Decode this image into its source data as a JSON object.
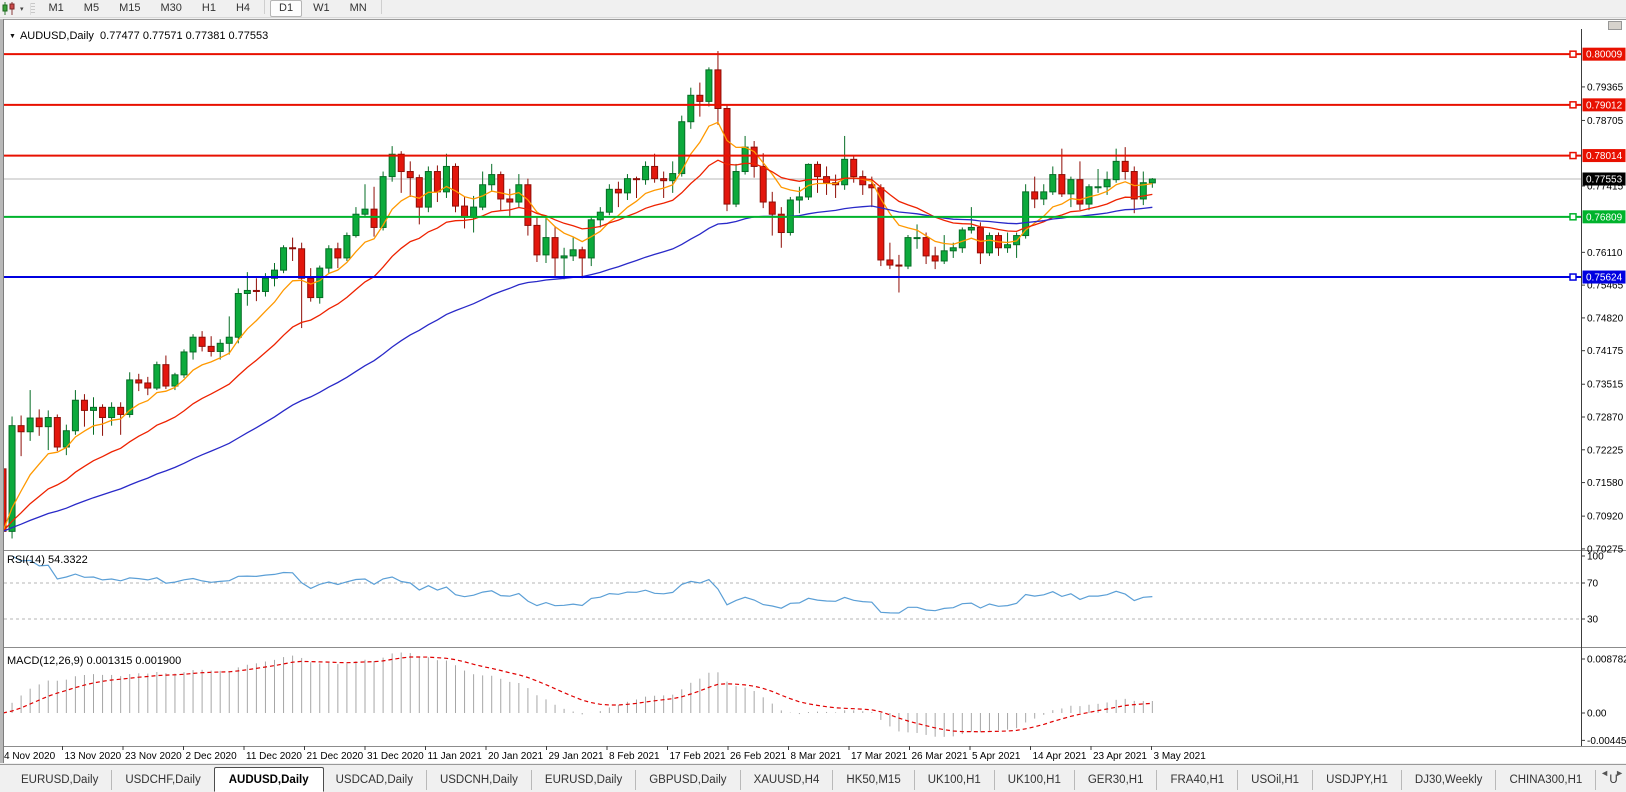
{
  "toolbar": {
    "chart_type_icon": "candlestick-chart-icon",
    "timeframes": [
      "M1",
      "M5",
      "M15",
      "M30",
      "H1",
      "H4",
      "D1",
      "W1",
      "MN"
    ],
    "active_timeframe": "D1"
  },
  "chart": {
    "title_symbol": "AUDUSD,Daily",
    "title_ohlc": "0.77477 0.77571 0.77381 0.77553",
    "price_ticks": [
      "0.79365",
      "0.78705",
      "0.77415",
      "0.76110",
      "0.75465",
      "0.74820",
      "0.74175",
      "0.73515",
      "0.72870",
      "0.72225",
      "0.71580",
      "0.70920",
      "0.70275"
    ],
    "current_price": "0.77553",
    "lines": [
      {
        "price": "0.80009",
        "color": "#e81000",
        "kind": "resistance"
      },
      {
        "price": "0.79012",
        "color": "#e81000",
        "kind": "resistance"
      },
      {
        "price": "0.78014",
        "color": "#e81000",
        "kind": "resistance"
      },
      {
        "price": "0.76809",
        "color": "#00b32c",
        "kind": "support"
      },
      {
        "price": "0.75624",
        "color": "#0000e0",
        "kind": "support"
      }
    ],
    "date_labels": [
      "4 Nov 2020",
      "13 Nov 2020",
      "23 Nov 2020",
      "2 Dec 2020",
      "11 Dec 2020",
      "21 Dec 2020",
      "31 Dec 2020",
      "11 Jan 2021",
      "20 Jan 2021",
      "29 Jan 2021",
      "8 Feb 2021",
      "17 Feb 2021",
      "26 Feb 2021",
      "8 Mar 2021",
      "17 Mar 2021",
      "26 Mar 2021",
      "5 Apr 2021",
      "14 Apr 2021",
      "23 Apr 2021",
      "3 May 2021"
    ]
  },
  "rsi": {
    "label": "RSI(14) 54.3322",
    "ticks": [
      "100",
      "70",
      "30"
    ],
    "level_lines": [
      70,
      30
    ],
    "line_color": "#5b9fd6"
  },
  "macd": {
    "label": "MACD(12,26,9) 0.001315 0.001900",
    "ticks": [
      "0.008782",
      "0.00",
      "-0.004451"
    ],
    "histogram_color": "#a6a6a6",
    "signal_color": "#e00000"
  },
  "tabs": {
    "items": [
      "EURUSD,Daily",
      "USDCHF,Daily",
      "AUDUSD,Daily",
      "USDCAD,Daily",
      "USDCNH,Daily",
      "EURUSD,Daily",
      "GBPUSD,Daily",
      "XAUUSD,H4",
      "HK50,M15",
      "UK100,H1",
      "UK100,H1",
      "GER30,H1",
      "FRA40,H1",
      "USOil,H1",
      "USDJPY,H1",
      "DJ30,Weekly",
      "CHINA300,H1",
      "U"
    ],
    "active_index": 2
  },
  "chart_data": {
    "type": "candlestick",
    "symbol": "AUDUSD",
    "timeframe": "Daily",
    "x_axis": "dates (see chart.date_labels)",
    "y_range": [
      0.70275,
      0.8033
    ],
    "up_color": "#0caa3c",
    "down_color": "#e3170d",
    "overlays": [
      {
        "type": "ema",
        "period": 8,
        "color": "#ff9900"
      },
      {
        "type": "ema",
        "period": 20,
        "color": "#ee2200"
      },
      {
        "type": "ema",
        "period": 55,
        "color": "#2929c8"
      }
    ],
    "indicator_panels": [
      {
        "type": "rsi",
        "period": 14,
        "current": 54.3322,
        "scale": [
          0,
          100
        ]
      },
      {
        "type": "macd",
        "fast": 12,
        "slow": 26,
        "signal": 9,
        "current_main": 0.001315,
        "current_signal": 0.0019,
        "scale": [
          -0.004451,
          0.008782
        ]
      }
    ],
    "candles": [
      [
        0.7185,
        0.719,
        0.7028,
        0.7062
      ],
      [
        0.7062,
        0.7288,
        0.7048,
        0.727
      ],
      [
        0.727,
        0.729,
        0.721,
        0.7258
      ],
      [
        0.7258,
        0.734,
        0.724,
        0.7285
      ],
      [
        0.7285,
        0.7302,
        0.725,
        0.7268
      ],
      [
        0.7268,
        0.73,
        0.7222,
        0.7286
      ],
      [
        0.7286,
        0.7292,
        0.722,
        0.7228
      ],
      [
        0.7228,
        0.7272,
        0.7212,
        0.726
      ],
      [
        0.726,
        0.734,
        0.7252,
        0.732
      ],
      [
        0.732,
        0.7332,
        0.7268,
        0.73
      ],
      [
        0.73,
        0.7326,
        0.7252,
        0.7306
      ],
      [
        0.7306,
        0.7312,
        0.725,
        0.7286
      ],
      [
        0.7286,
        0.7316,
        0.727,
        0.7306
      ],
      [
        0.7306,
        0.7316,
        0.7252,
        0.7292
      ],
      [
        0.7292,
        0.7375,
        0.7286,
        0.736
      ],
      [
        0.736,
        0.7372,
        0.7338,
        0.7354
      ],
      [
        0.7354,
        0.7366,
        0.733,
        0.7344
      ],
      [
        0.7344,
        0.7396,
        0.734,
        0.739
      ],
      [
        0.739,
        0.7408,
        0.7342,
        0.7348
      ],
      [
        0.7348,
        0.7374,
        0.734,
        0.737
      ],
      [
        0.737,
        0.742,
        0.7364,
        0.7415
      ],
      [
        0.7415,
        0.745,
        0.74,
        0.7444
      ],
      [
        0.7444,
        0.7456,
        0.7416,
        0.7426
      ],
      [
        0.7426,
        0.7446,
        0.7406,
        0.7416
      ],
      [
        0.7416,
        0.744,
        0.74,
        0.7432
      ],
      [
        0.7432,
        0.7485,
        0.741,
        0.7444
      ],
      [
        0.7444,
        0.754,
        0.7432,
        0.753
      ],
      [
        0.753,
        0.7572,
        0.7506,
        0.7536
      ],
      [
        0.7536,
        0.756,
        0.7515,
        0.7534
      ],
      [
        0.7534,
        0.757,
        0.7524,
        0.756
      ],
      [
        0.756,
        0.759,
        0.7544,
        0.7576
      ],
      [
        0.7576,
        0.7625,
        0.757,
        0.762
      ],
      [
        0.762,
        0.764,
        0.7594,
        0.7618
      ],
      [
        0.7618,
        0.763,
        0.7462,
        0.756
      ],
      [
        0.756,
        0.758,
        0.7514,
        0.7522
      ],
      [
        0.7522,
        0.7585,
        0.751,
        0.758
      ],
      [
        0.758,
        0.7625,
        0.757,
        0.7618
      ],
      [
        0.7618,
        0.763,
        0.758,
        0.76
      ],
      [
        0.76,
        0.765,
        0.7594,
        0.7644
      ],
      [
        0.7644,
        0.77,
        0.764,
        0.7686
      ],
      [
        0.7686,
        0.7745,
        0.768,
        0.7696
      ],
      [
        0.7696,
        0.774,
        0.7642,
        0.766
      ],
      [
        0.766,
        0.777,
        0.7654,
        0.776
      ],
      [
        0.776,
        0.782,
        0.775,
        0.7804
      ],
      [
        0.7804,
        0.781,
        0.7728,
        0.777
      ],
      [
        0.777,
        0.779,
        0.772,
        0.7758
      ],
      [
        0.7758,
        0.7764,
        0.7666,
        0.77
      ],
      [
        0.77,
        0.778,
        0.769,
        0.777
      ],
      [
        0.777,
        0.7782,
        0.771,
        0.773
      ],
      [
        0.773,
        0.7805,
        0.7718,
        0.778
      ],
      [
        0.778,
        0.7786,
        0.769,
        0.7702
      ],
      [
        0.7702,
        0.772,
        0.7658,
        0.768
      ],
      [
        0.768,
        0.7722,
        0.765,
        0.77
      ],
      [
        0.77,
        0.777,
        0.7694,
        0.7744
      ],
      [
        0.7744,
        0.7785,
        0.773,
        0.7764
      ],
      [
        0.7764,
        0.777,
        0.7694,
        0.7716
      ],
      [
        0.7716,
        0.7736,
        0.768,
        0.771
      ],
      [
        0.771,
        0.7765,
        0.77,
        0.7744
      ],
      [
        0.7744,
        0.7756,
        0.7644,
        0.7664
      ],
      [
        0.7664,
        0.768,
        0.7592,
        0.7606
      ],
      [
        0.7606,
        0.768,
        0.759,
        0.764
      ],
      [
        0.764,
        0.7662,
        0.7564,
        0.76
      ],
      [
        0.76,
        0.762,
        0.7558,
        0.7604
      ],
      [
        0.7604,
        0.764,
        0.7594,
        0.7616
      ],
      [
        0.7616,
        0.7622,
        0.756,
        0.76
      ],
      [
        0.76,
        0.768,
        0.7584,
        0.7675
      ],
      [
        0.7675,
        0.77,
        0.766,
        0.769
      ],
      [
        0.769,
        0.7745,
        0.7684,
        0.7735
      ],
      [
        0.7735,
        0.775,
        0.77,
        0.7728
      ],
      [
        0.7728,
        0.7765,
        0.7714,
        0.7756
      ],
      [
        0.7756,
        0.776,
        0.7718,
        0.7754
      ],
      [
        0.7754,
        0.779,
        0.7744,
        0.778
      ],
      [
        0.778,
        0.7805,
        0.7748,
        0.7756
      ],
      [
        0.7756,
        0.777,
        0.7718,
        0.7752
      ],
      [
        0.7752,
        0.779,
        0.7728,
        0.7766
      ],
      [
        0.7766,
        0.788,
        0.776,
        0.7868
      ],
      [
        0.7868,
        0.7935,
        0.7854,
        0.792
      ],
      [
        0.792,
        0.7945,
        0.7878,
        0.7908
      ],
      [
        0.7908,
        0.7975,
        0.7898,
        0.797
      ],
      [
        0.797,
        0.8007,
        0.7862,
        0.7894
      ],
      [
        0.7894,
        0.79,
        0.7692,
        0.7706
      ],
      [
        0.7706,
        0.7785,
        0.77,
        0.777
      ],
      [
        0.777,
        0.784,
        0.7764,
        0.7818
      ],
      [
        0.7818,
        0.783,
        0.7758,
        0.778
      ],
      [
        0.778,
        0.7806,
        0.7698,
        0.771
      ],
      [
        0.771,
        0.773,
        0.7644,
        0.7686
      ],
      [
        0.7686,
        0.77,
        0.762,
        0.765
      ],
      [
        0.765,
        0.772,
        0.7644,
        0.7714
      ],
      [
        0.7714,
        0.774,
        0.7688,
        0.772
      ],
      [
        0.772,
        0.7786,
        0.7714,
        0.7784
      ],
      [
        0.7784,
        0.779,
        0.7728,
        0.776
      ],
      [
        0.776,
        0.778,
        0.7724,
        0.7748
      ],
      [
        0.7748,
        0.7764,
        0.7718,
        0.7744
      ],
      [
        0.7744,
        0.784,
        0.7734,
        0.7794
      ],
      [
        0.7794,
        0.78,
        0.7748,
        0.776
      ],
      [
        0.776,
        0.7772,
        0.7724,
        0.7744
      ],
      [
        0.7744,
        0.776,
        0.77,
        0.7738
      ],
      [
        0.7738,
        0.7745,
        0.7584,
        0.7596
      ],
      [
        0.7596,
        0.763,
        0.7578,
        0.7586
      ],
      [
        0.7586,
        0.7606,
        0.7532,
        0.7584
      ],
      [
        0.7584,
        0.7645,
        0.7578,
        0.764
      ],
      [
        0.764,
        0.7666,
        0.7618,
        0.764
      ],
      [
        0.764,
        0.765,
        0.7588,
        0.7604
      ],
      [
        0.7604,
        0.7622,
        0.7578,
        0.7594
      ],
      [
        0.7594,
        0.7645,
        0.7588,
        0.7614
      ],
      [
        0.7614,
        0.763,
        0.76,
        0.762
      ],
      [
        0.762,
        0.766,
        0.761,
        0.7655
      ],
      [
        0.7655,
        0.77,
        0.7648,
        0.766
      ],
      [
        0.766,
        0.767,
        0.7588,
        0.761
      ],
      [
        0.761,
        0.765,
        0.7604,
        0.7644
      ],
      [
        0.7644,
        0.765,
        0.7604,
        0.762
      ],
      [
        0.762,
        0.765,
        0.761,
        0.7626
      ],
      [
        0.7626,
        0.765,
        0.76,
        0.7644
      ],
      [
        0.7644,
        0.7745,
        0.7638,
        0.773
      ],
      [
        0.773,
        0.776,
        0.7698,
        0.7716
      ],
      [
        0.7716,
        0.7745,
        0.7704,
        0.773
      ],
      [
        0.773,
        0.778,
        0.7724,
        0.7764
      ],
      [
        0.7764,
        0.7815,
        0.772,
        0.7726
      ],
      [
        0.7726,
        0.776,
        0.77,
        0.7754
      ],
      [
        0.7754,
        0.779,
        0.7694,
        0.7706
      ],
      [
        0.7706,
        0.7745,
        0.7694,
        0.774
      ],
      [
        0.774,
        0.7775,
        0.7728,
        0.774
      ],
      [
        0.774,
        0.777,
        0.7724,
        0.7754
      ],
      [
        0.7754,
        0.7815,
        0.7748,
        0.779
      ],
      [
        0.779,
        0.7818,
        0.7754,
        0.777
      ],
      [
        0.777,
        0.778,
        0.7688,
        0.7716
      ],
      [
        0.7716,
        0.777,
        0.7704,
        0.7748
      ],
      [
        0.77477,
        0.77571,
        0.77381,
        0.77553
      ]
    ]
  }
}
